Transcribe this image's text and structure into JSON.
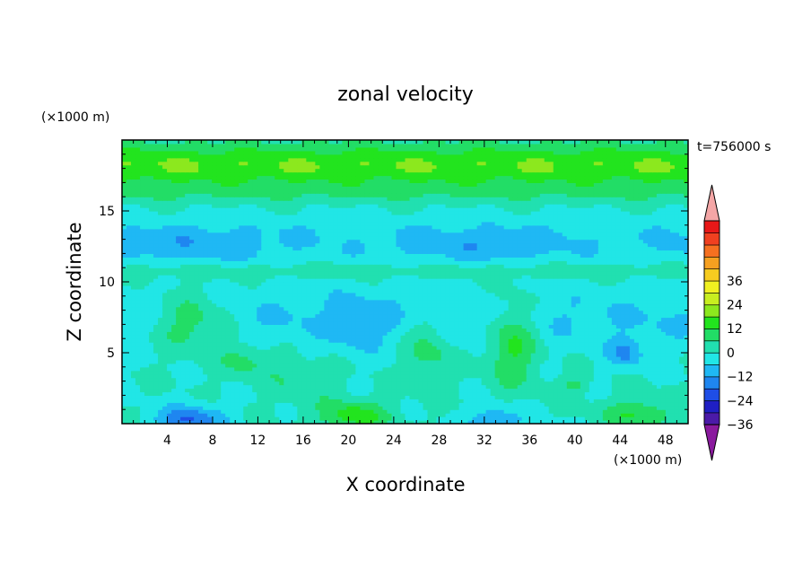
{
  "chart_data": {
    "type": "heatmap",
    "title": "zonal velocity",
    "xlabel": "X coordinate",
    "ylabel": "Z coordinate",
    "x_unit": "(×1000 m)",
    "y_unit": "(×1000 m)",
    "time_label": "t=756000 s",
    "xlim": [
      0,
      50
    ],
    "ylim": [
      0,
      20
    ],
    "x_ticks": [
      4,
      8,
      12,
      16,
      20,
      24,
      28,
      32,
      36,
      40,
      44,
      48
    ],
    "y_ticks": [
      5,
      10,
      15
    ],
    "colorbar": {
      "min": -42,
      "max": 42,
      "step": 6,
      "tick_values": [
        36,
        24,
        12,
        0,
        -12,
        -24,
        -36
      ],
      "colors": [
        "#8a1a9e",
        "#4b1aa8",
        "#1f1fc4",
        "#1f4ee6",
        "#1f86f0",
        "#1fb8f4",
        "#21e6e6",
        "#21e0b0",
        "#22dd66",
        "#22e41e",
        "#8ce81e",
        "#c8ee20",
        "#f0f020",
        "#f6cc20",
        "#f6a020",
        "#f67020",
        "#f04020",
        "#e81818",
        "#f4a6a6"
      ]
    },
    "field_note": "u(x,z): low-level and mid-level features near zero; easterly (negative) cores near z~0 and z~12; westerly (positive) band near z~17-19 km"
  }
}
